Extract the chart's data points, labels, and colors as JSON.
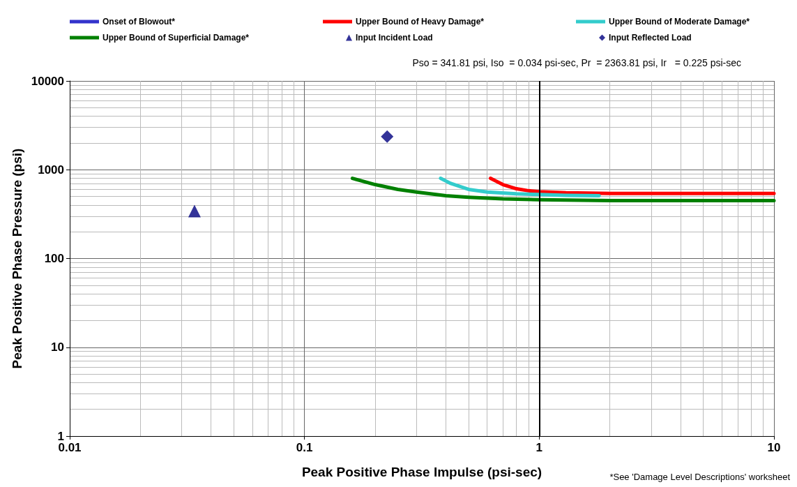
{
  "chart_data": {
    "type": "line",
    "xlabel": "Peak Positive Phase Impulse (psi-sec)",
    "ylabel": "Peak Positive Phase Pressure (psi)",
    "log": "xy",
    "xlim": [
      0.01,
      10
    ],
    "xticks": [
      0.01,
      0.1,
      1,
      10
    ],
    "ylim": [
      1,
      10000
    ],
    "yticks": [
      1,
      10,
      100,
      1000,
      10000
    ],
    "grid": true,
    "legend": "top",
    "marker": "none",
    "line_style": "solid",
    "ref_lines": [
      {
        "axis": "x",
        "value": 1,
        "color": "#000000"
      }
    ],
    "annotations": [
      "Pso = 341.81 psi, Iso  = 0.034 psi-sec, Pr  = 2363.81 psi, Ir   = 0.225 psi-sec",
      "*See 'Damage Level Descriptions' worksheet"
    ],
    "series": [
      {
        "name": "Onset of Blowout*",
        "color": "#3333cc"
      },
      {
        "name": "Upper Bound of Heavy Damage*",
        "color": "#ff0000",
        "x": [
          0.62,
          0.7,
          0.8,
          0.9,
          1,
          1.3,
          2,
          5,
          10
        ],
        "values": [
          800,
          680,
          610,
          580,
          565,
          550,
          540,
          540,
          540
        ]
      },
      {
        "name": "Upper Bound of Moderate Damage*",
        "color": "#33cccc",
        "x": [
          0.38,
          0.42,
          0.5,
          0.6,
          0.8,
          1,
          1.3,
          1.8
        ],
        "values": [
          800,
          700,
          600,
          560,
          535,
          525,
          515,
          510
        ]
      },
      {
        "name": "Upper Bound of Superficial Damage*",
        "color": "#008000",
        "x": [
          0.16,
          0.2,
          0.25,
          0.3,
          0.4,
          0.5,
          0.7,
          1,
          2,
          5,
          10
        ],
        "values": [
          800,
          680,
          600,
          560,
          510,
          490,
          470,
          460,
          450,
          450,
          450
        ]
      },
      {
        "name": "Input Incident Load",
        "type": "scatter",
        "marker": "triangle",
        "color": "#000080",
        "x": [
          0.034
        ],
        "values": [
          341.81
        ]
      },
      {
        "name": "Input Reflected Load",
        "type": "scatter",
        "marker": "diamond",
        "color": "#000080",
        "x": [
          0.225
        ],
        "values": [
          2363.81
        ]
      }
    ]
  }
}
